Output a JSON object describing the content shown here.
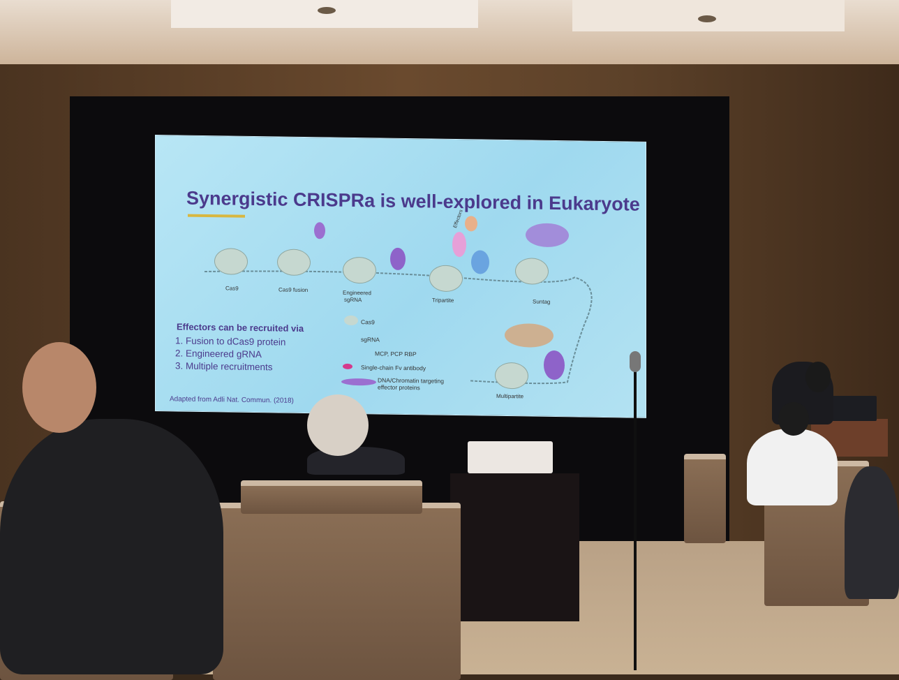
{
  "slide": {
    "title": "Synergistic CRISPRa is well-explored in Eukaryote",
    "diagram_labels": {
      "cas9": "Cas9",
      "cas9_fusion": "Cas9 fusion",
      "engineered_line1": "Engineered",
      "engineered_line2": "sgRNA",
      "tripartite": "Tripartite",
      "suntag": "Suntag",
      "multipartite": "Multipartite",
      "effectors_tag": "Effectors"
    },
    "effectors_heading": "Effectors can be recruited via",
    "effectors_list": [
      "1.   Fusion to dCas9 protein",
      "2.   Engineered gRNA",
      "3.   Multiple recruitments"
    ],
    "legend": [
      "Cas9",
      "sgRNA",
      "MCP, PCP RBP",
      "Single-chain Fv antibody",
      "DNA/Chromatin targeting",
      "effector proteins"
    ],
    "citation": "Adapted from Adli Nat. Commun. (2018)"
  },
  "colors": {
    "slide_title": "#4b3a8c",
    "slide_background": "#a9def2",
    "underline_accent": "#d8b740",
    "effector_purple": "#9b6fd0"
  }
}
